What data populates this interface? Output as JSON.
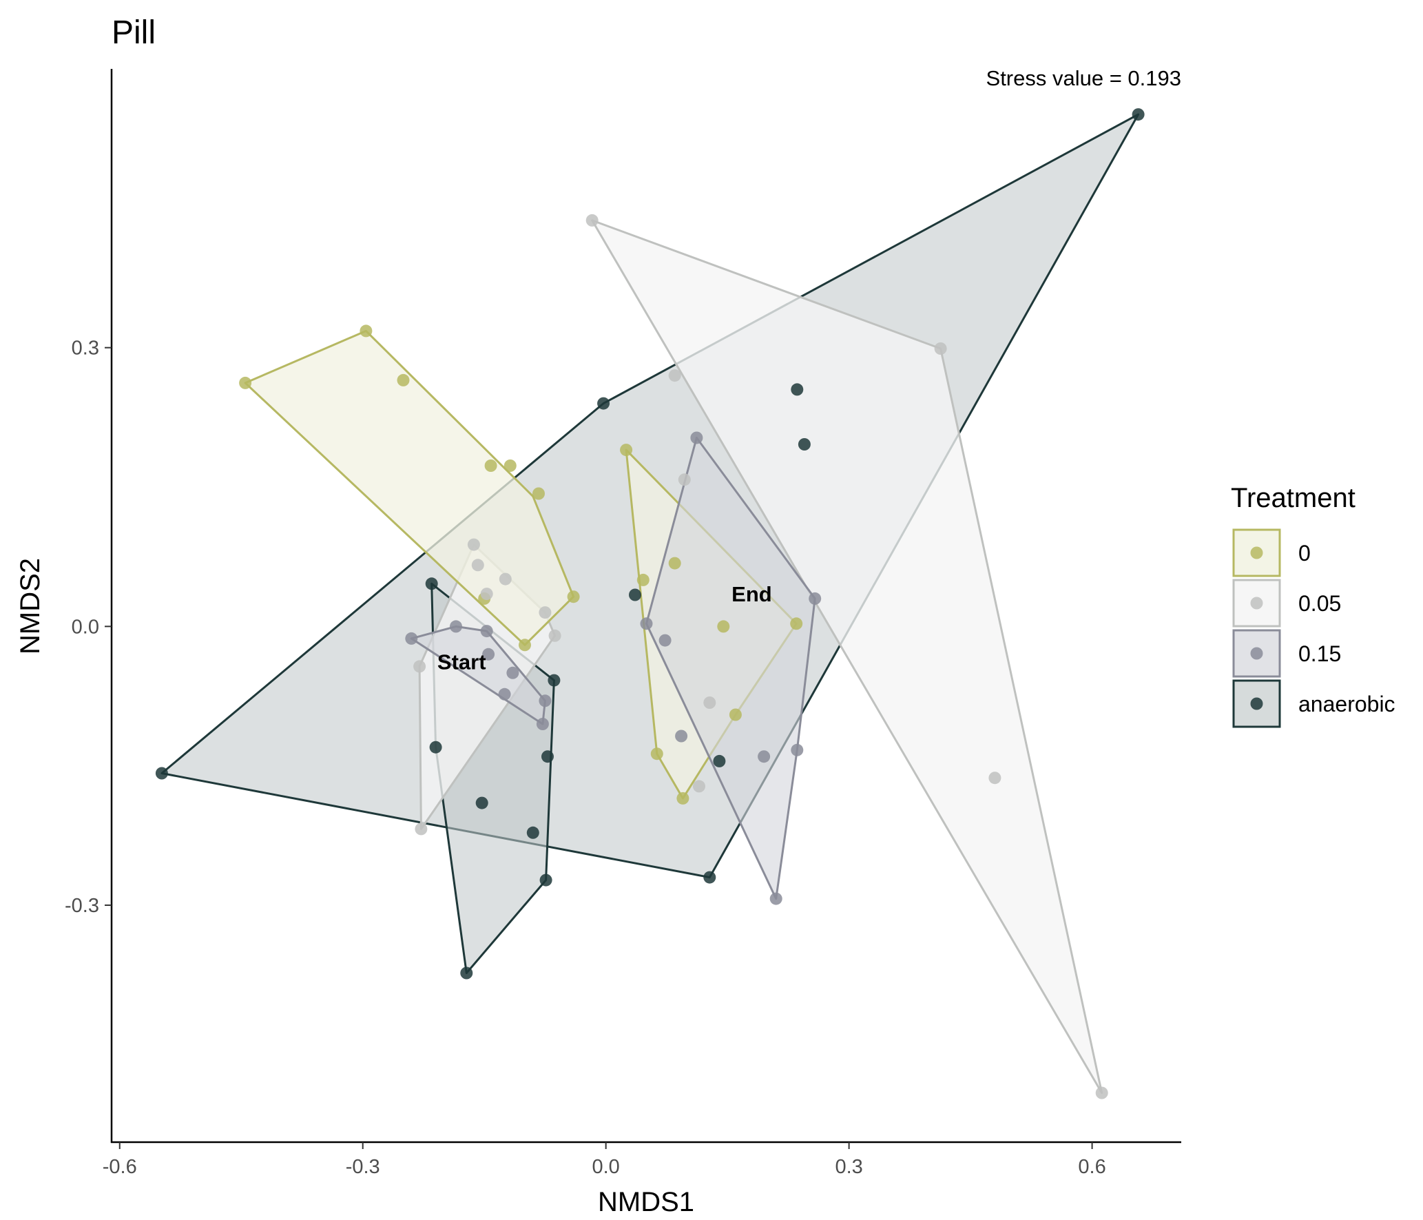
{
  "chart_data": {
    "type": "scatter",
    "title": "Pill",
    "xlabel": "NMDS1",
    "ylabel": "NMDS2",
    "xlim": [
      -0.61,
      0.71
    ],
    "ylim": [
      -0.555,
      0.6
    ],
    "xticks": [
      -0.6,
      -0.3,
      0.0,
      0.3,
      0.6
    ],
    "yticks": [
      -0.3,
      0.0,
      0.3
    ],
    "xtick_labels": [
      "-0.6",
      "-0.3",
      "0.0",
      "0.3",
      "0.6"
    ],
    "ytick_labels": [
      "-0.3",
      "0.0",
      "0.3"
    ],
    "grid": false,
    "stress_text": "Stress value = 0.193",
    "annotations": [
      {
        "text": "Start",
        "x": -0.178,
        "y": -0.038
      },
      {
        "text": "End",
        "x": 0.18,
        "y": 0.035
      }
    ],
    "legend": {
      "title": "Treatment",
      "position": "right"
    },
    "series": [
      {
        "name": "0",
        "color": "#b6b862",
        "fill": "#f1f2e2",
        "fill_opacity": 0.75,
        "groups": [
          {
            "hull": [
              [
                -0.445,
                0.262
              ],
              [
                -0.296,
                0.318
              ],
              [
                -0.09,
                0.14
              ],
              [
                -0.04,
                0.032
              ],
              [
                -0.1,
                -0.02
              ]
            ],
            "points": [
              [
                -0.445,
                0.262
              ],
              [
                -0.296,
                0.318
              ],
              [
                -0.25,
                0.265
              ],
              [
                -0.142,
                0.173
              ],
              [
                -0.118,
                0.173
              ],
              [
                -0.083,
                0.143
              ],
              [
                -0.04,
                0.032
              ],
              [
                -0.1,
                -0.02
              ],
              [
                -0.15,
                0.03
              ]
            ]
          },
          {
            "hull": [
              [
                0.025,
                0.19
              ],
              [
                0.235,
                0.003
              ],
              [
                0.16,
                -0.095
              ],
              [
                0.095,
                -0.185
              ],
              [
                0.063,
                -0.137
              ]
            ],
            "points": [
              [
                0.025,
                0.19
              ],
              [
                0.046,
                0.05
              ],
              [
                0.085,
                0.068
              ],
              [
                0.145,
                0.0
              ],
              [
                0.235,
                0.003
              ],
              [
                0.16,
                -0.095
              ],
              [
                0.095,
                -0.185
              ],
              [
                0.063,
                -0.137
              ]
            ]
          }
        ]
      },
      {
        "name": "0.05",
        "color": "#bfc1bf",
        "fill": "#f5f5f5",
        "fill_opacity": 0.78,
        "groups": [
          {
            "hull": [
              [
                -0.163,
                0.088
              ],
              [
                -0.075,
                0.015
              ],
              [
                -0.063,
                -0.01
              ],
              [
                -0.228,
                -0.218
              ],
              [
                -0.23,
                -0.043
              ]
            ],
            "points": [
              [
                -0.163,
                0.088
              ],
              [
                -0.158,
                0.066
              ],
              [
                -0.124,
                0.051
              ],
              [
                -0.147,
                0.035
              ],
              [
                -0.075,
                0.015
              ],
              [
                -0.063,
                -0.01
              ],
              [
                -0.23,
                -0.043
              ],
              [
                -0.228,
                -0.218
              ]
            ]
          },
          {
            "hull": [
              [
                -0.017,
                0.437
              ],
              [
                0.413,
                0.299
              ],
              [
                0.612,
                -0.502
              ]
            ],
            "points": [
              [
                -0.017,
                0.437
              ],
              [
                0.413,
                0.299
              ],
              [
                0.085,
                0.27
              ],
              [
                0.097,
                0.158
              ],
              [
                0.128,
                -0.082
              ],
              [
                0.115,
                -0.172
              ],
              [
                0.48,
                -0.163
              ],
              [
                0.612,
                -0.502
              ]
            ]
          }
        ]
      },
      {
        "name": "0.15",
        "color": "#8a8c99",
        "fill": "#d4d6dc",
        "fill_opacity": 0.6,
        "groups": [
          {
            "hull": [
              [
                -0.24,
                -0.013
              ],
              [
                -0.185,
                0.0
              ],
              [
                -0.147,
                -0.005
              ],
              [
                -0.075,
                -0.08
              ],
              [
                -0.078,
                -0.105
              ]
            ],
            "points": [
              [
                -0.24,
                -0.013
              ],
              [
                -0.185,
                0.0
              ],
              [
                -0.147,
                -0.005
              ],
              [
                -0.145,
                -0.03
              ],
              [
                -0.115,
                -0.05
              ],
              [
                -0.125,
                -0.073
              ],
              [
                -0.075,
                -0.08
              ],
              [
                -0.078,
                -0.105
              ]
            ]
          },
          {
            "hull": [
              [
                0.112,
                0.203
              ],
              [
                0.258,
                0.03
              ],
              [
                0.236,
                -0.133
              ],
              [
                0.21,
                -0.293
              ],
              [
                0.05,
                0.003
              ]
            ],
            "points": [
              [
                0.112,
                0.203
              ],
              [
                0.258,
                0.03
              ],
              [
                0.05,
                0.003
              ],
              [
                0.073,
                -0.015
              ],
              [
                0.093,
                -0.118
              ],
              [
                0.195,
                -0.14
              ],
              [
                0.236,
                -0.133
              ],
              [
                0.21,
                -0.293
              ]
            ]
          }
        ]
      },
      {
        "name": "anaerobic",
        "color": "#1e3839",
        "fill": "#c0c7c8",
        "fill_opacity": 0.55,
        "groups": [
          {
            "hull": [
              [
                -0.003,
                0.24
              ],
              [
                0.657,
                0.551
              ],
              [
                0.128,
                -0.27
              ],
              [
                -0.548,
                -0.158
              ]
            ],
            "points": [
              [
                -0.003,
                0.24
              ],
              [
                0.657,
                0.551
              ],
              [
                0.128,
                -0.27
              ],
              [
                -0.548,
                -0.158
              ],
              [
                0.236,
                0.255
              ],
              [
                0.245,
                0.196
              ],
              [
                0.036,
                0.034
              ],
              [
                0.14,
                -0.145
              ]
            ]
          },
          {
            "hull": [
              [
                -0.215,
                0.046
              ],
              [
                -0.064,
                -0.058
              ],
              [
                -0.074,
                -0.273
              ],
              [
                -0.172,
                -0.373
              ],
              [
                -0.21,
                -0.13
              ]
            ],
            "points": [
              [
                -0.215,
                0.046
              ],
              [
                -0.064,
                -0.058
              ],
              [
                -0.072,
                -0.14
              ],
              [
                -0.21,
                -0.13
              ],
              [
                -0.153,
                -0.19
              ],
              [
                -0.09,
                -0.222
              ],
              [
                -0.074,
                -0.273
              ],
              [
                -0.172,
                -0.373
              ]
            ]
          }
        ]
      }
    ]
  }
}
